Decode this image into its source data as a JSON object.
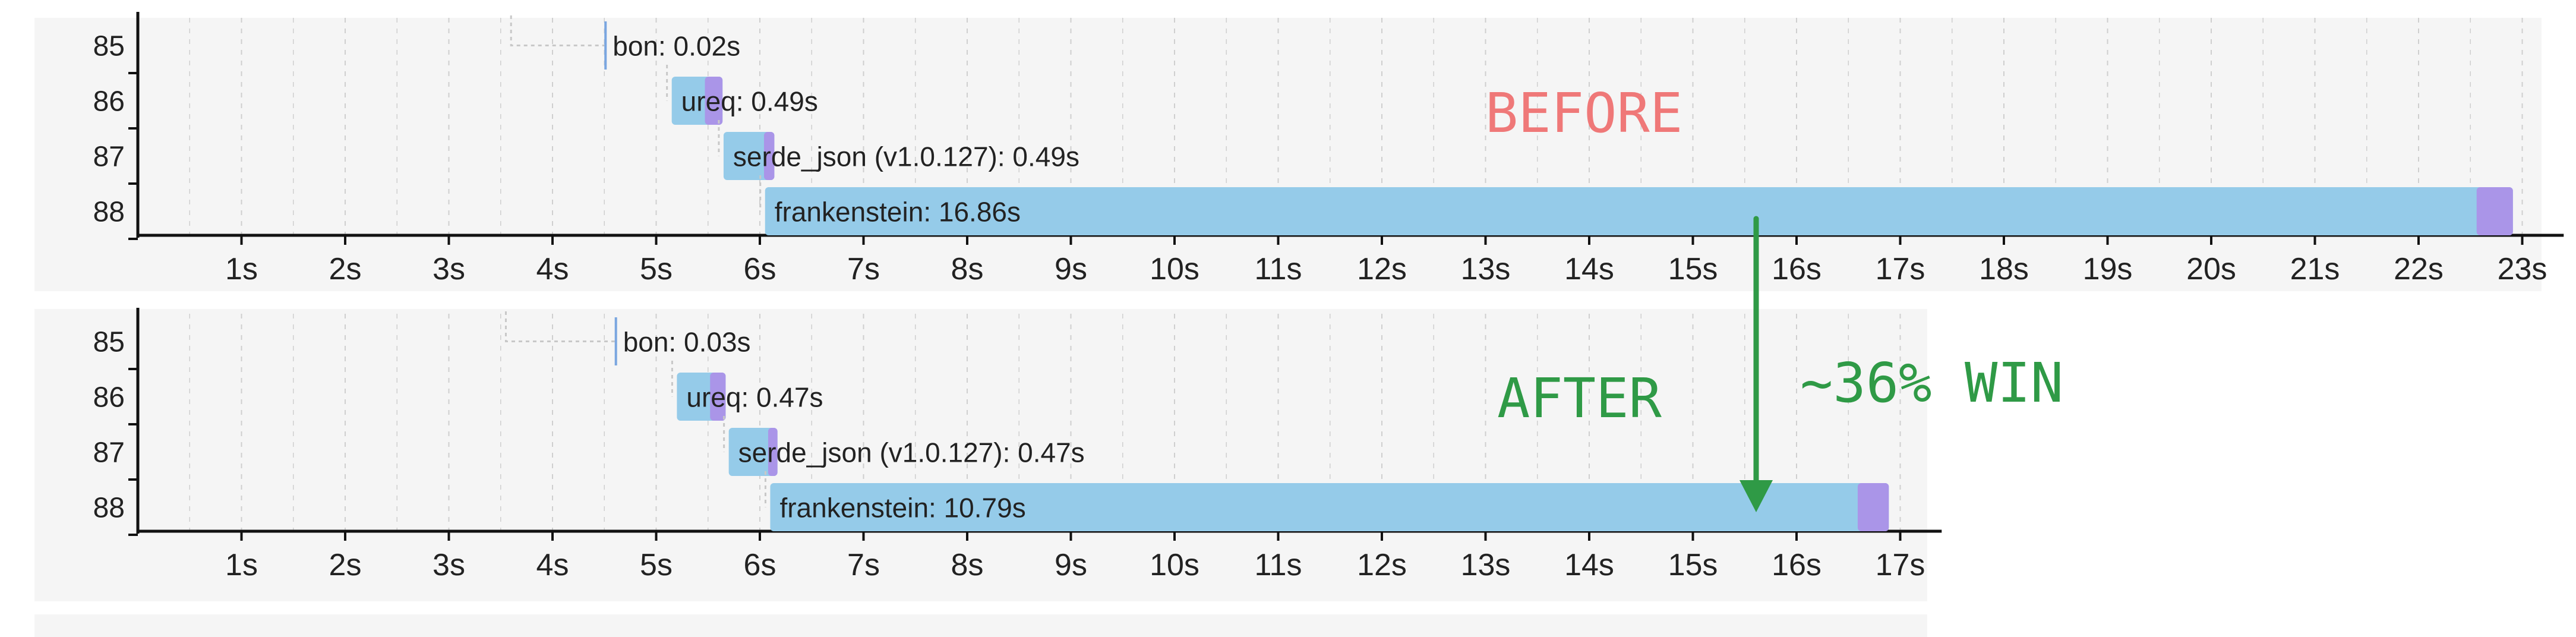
{
  "colors": {
    "background": "#f5f5f5",
    "page": "#ffffff",
    "bar_main": "#95cbe9",
    "bar_link": "#aa95e8",
    "axis": "#111111",
    "grid": "#cfcfcf",
    "dep_line": "#c8c8c8",
    "before_text": "#ef7878",
    "after_text": "#2f9a46",
    "arrow": "#2f9a46"
  },
  "annotations": {
    "before": "BEFORE",
    "after": "AFTER",
    "win": "~36% WIN"
  },
  "chart_data": [
    {
      "type": "bar",
      "subtype": "gantt-timeline",
      "name": "before",
      "xlim": [
        0,
        23.4
      ],
      "tick_labels": [
        "1s",
        "2s",
        "3s",
        "4s",
        "5s",
        "6s",
        "7s",
        "8s",
        "9s",
        "10s",
        "11s",
        "12s",
        "13s",
        "14s",
        "15s",
        "16s",
        "17s",
        "18s",
        "19s",
        "20s",
        "21s",
        "22s",
        "23s"
      ],
      "rows": [
        "85",
        "86",
        "87",
        "88"
      ],
      "bars": [
        {
          "row": "85",
          "label": "bon: 0.02s",
          "start": 4.5,
          "duration": 0.02,
          "link_duration": 0.0,
          "dep_from": 3.6
        },
        {
          "row": "86",
          "label": "ureq: 0.49s",
          "start": 5.15,
          "duration": 0.49,
          "link_duration": 0.17,
          "dep_from": null
        },
        {
          "row": "87",
          "label": "serde_json (v1.0.127): 0.49s",
          "start": 5.65,
          "duration": 0.49,
          "link_duration": 0.1,
          "dep_from": null
        },
        {
          "row": "88",
          "label": "frankenstein: 16.86s",
          "start": 6.05,
          "duration": 16.86,
          "link_duration": 0.35,
          "dep_from": null
        }
      ]
    },
    {
      "type": "bar",
      "subtype": "gantt-timeline",
      "name": "after",
      "xlim": [
        0,
        17.4
      ],
      "tick_labels": [
        "1s",
        "2s",
        "3s",
        "4s",
        "5s",
        "6s",
        "7s",
        "8s",
        "9s",
        "10s",
        "11s",
        "12s",
        "13s",
        "14s",
        "15s",
        "16s",
        "17s"
      ],
      "rows": [
        "85",
        "86",
        "87",
        "88"
      ],
      "bars": [
        {
          "row": "85",
          "label": "bon: 0.03s",
          "start": 4.6,
          "duration": 0.03,
          "link_duration": 0.0,
          "dep_from": 3.55
        },
        {
          "row": "86",
          "label": "ureq: 0.47s",
          "start": 5.2,
          "duration": 0.47,
          "link_duration": 0.15,
          "dep_from": null
        },
        {
          "row": "87",
          "label": "serde_json (v1.0.127): 0.47s",
          "start": 5.7,
          "duration": 0.47,
          "link_duration": 0.09,
          "dep_from": null
        },
        {
          "row": "88",
          "label": "frankenstein: 10.79s",
          "start": 6.1,
          "duration": 10.79,
          "link_duration": 0.3,
          "dep_from": null
        }
      ]
    }
  ]
}
